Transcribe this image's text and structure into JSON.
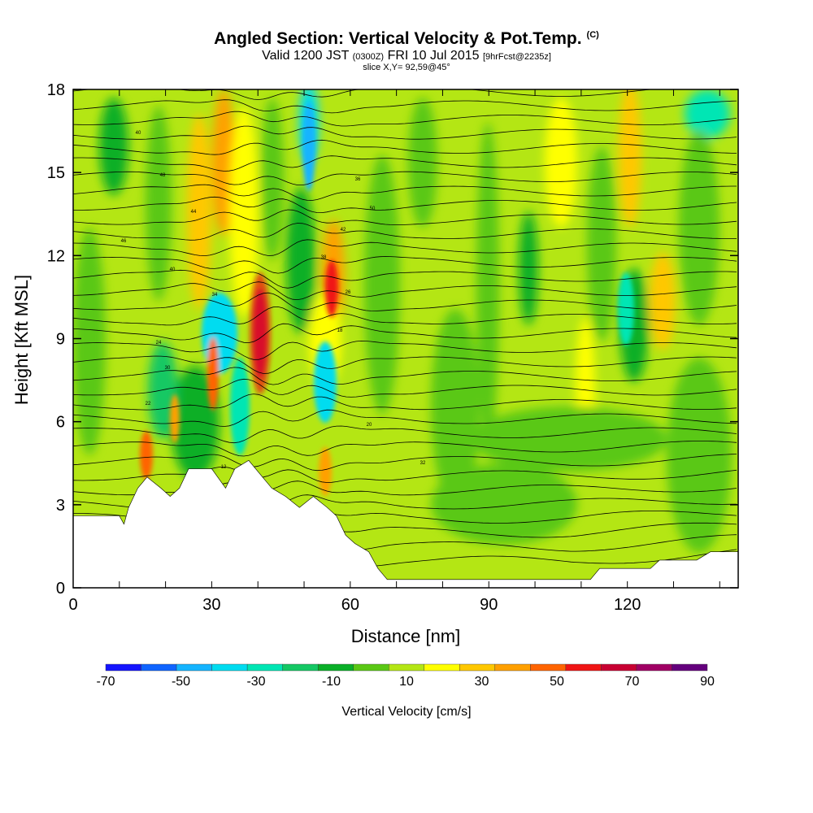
{
  "header": {
    "title": "Angled Section: Vertical Velocity & Pot.Temp.",
    "title_mark": "(C)",
    "valid_prefix": "Valid 1200 JST",
    "valid_z": "(0300Z)",
    "valid_date": "FRI 10 Jul 2015",
    "valid_fcst": "[9hrFcst@2235z]",
    "slice": "slice X,Y= 92,59@45°"
  },
  "chart_data": {
    "type": "heatmap",
    "title": "Angled Section: Vertical Velocity & Pot.Temp.",
    "xlabel": "Distance [nm]",
    "ylabel": "Height [Kft MSL]",
    "xlim": [
      0,
      144
    ],
    "ylim": [
      0,
      18
    ],
    "x_ticks": [
      0,
      30,
      60,
      90,
      120
    ],
    "y_ticks": [
      0,
      3,
      6,
      9,
      12,
      15,
      18
    ],
    "colorbar": {
      "title": "Vertical Velocity [cm/s]",
      "tick_labels": [
        "-70",
        "-50",
        "-30",
        "-10",
        "10",
        "30",
        "50",
        "70",
        "90"
      ],
      "bounds": [
        -70,
        -60,
        -50,
        -40,
        -30,
        -20,
        -10,
        0,
        10,
        20,
        30,
        40,
        50,
        60,
        70,
        80,
        90
      ],
      "colors": [
        "#1414ff",
        "#0f64ff",
        "#14b4ff",
        "#00dcf0",
        "#00e6b4",
        "#14c864",
        "#0aaf28",
        "#5ac814",
        "#b4e614",
        "#ffff00",
        "#ffc800",
        "#ffa000",
        "#ff6400",
        "#f01414",
        "#c80032",
        "#a00064",
        "#64007d"
      ]
    },
    "terrain": [
      [
        0,
        2.6
      ],
      [
        10,
        2.6
      ],
      [
        11,
        2.3
      ],
      [
        12,
        2.9
      ],
      [
        14,
        3.6
      ],
      [
        16,
        4.0
      ],
      [
        19,
        3.6
      ],
      [
        21,
        3.3
      ],
      [
        23,
        3.6
      ],
      [
        25,
        4.3
      ],
      [
        30,
        4.3
      ],
      [
        33,
        3.6
      ],
      [
        35,
        4.3
      ],
      [
        38,
        4.6
      ],
      [
        41,
        4.0
      ],
      [
        43,
        3.6
      ],
      [
        46,
        3.3
      ],
      [
        49,
        2.9
      ],
      [
        52,
        3.3
      ],
      [
        55,
        2.9
      ],
      [
        57,
        2.6
      ],
      [
        59,
        1.9
      ],
      [
        61,
        1.6
      ],
      [
        64,
        1.3
      ],
      [
        66,
        0.7
      ],
      [
        68,
        0.3
      ],
      [
        112,
        0.3
      ],
      [
        114,
        0.7
      ],
      [
        125,
        0.7
      ],
      [
        127,
        1.0
      ],
      [
        135,
        1.0
      ],
      [
        138,
        1.3
      ],
      [
        144,
        1.3
      ]
    ],
    "theta_contour_labels": [
      "40",
      "48",
      "44",
      "46",
      "40",
      "34",
      "24",
      "30",
      "22",
      "12",
      "36",
      "50",
      "42",
      "38",
      "26",
      "18",
      "20",
      "32"
    ]
  }
}
